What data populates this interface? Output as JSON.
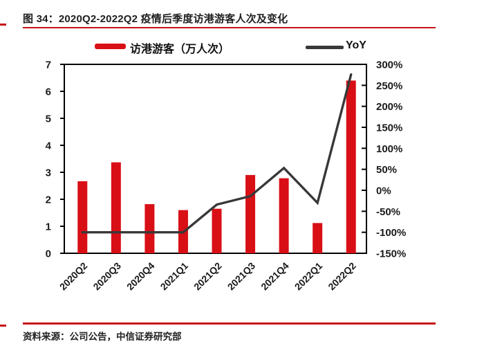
{
  "figure": {
    "title": "图 34：2020Q2-2022Q2 疫情后季度访港游客人次及变化",
    "source": "资料来源：公司公告，中信证券研究部"
  },
  "legend": {
    "bar_label": "访港游客（万人次）",
    "line_label": "YoY"
  },
  "colors": {
    "bar": "#d90f16",
    "line": "#383838",
    "rule": "#c41016",
    "axis": "#000000",
    "text": "#1a1a1a"
  },
  "chart_data": {
    "type": "bar",
    "title": "2020Q2-2022Q2 疫情后季度访港游客人次及变化",
    "categories": [
      "2020Q2",
      "2020Q3",
      "2020Q4",
      "2021Q1",
      "2021Q2",
      "2021Q3",
      "2021Q4",
      "2022Q1",
      "2022Q2"
    ],
    "series": [
      {
        "name": "访港游客（万人次）",
        "type": "bar",
        "axis": "left",
        "color": "#d90f16",
        "values": [
          2.67,
          3.37,
          1.82,
          1.6,
          1.65,
          2.9,
          2.78,
          1.12,
          6.4
        ]
      },
      {
        "name": "YoY",
        "type": "line",
        "axis": "right",
        "color": "#383838",
        "values": [
          -100,
          -100,
          -100,
          -100,
          -34,
          -14,
          53,
          -30,
          276
        ]
      }
    ],
    "left_axis": {
      "min": 0,
      "max": 7,
      "tick_labels": [
        "0",
        "1",
        "2",
        "3",
        "4",
        "5",
        "6",
        "7"
      ]
    },
    "right_axis": {
      "min": -150,
      "max": 300,
      "tick_labels": [
        "-150%",
        "-100%",
        "-50%",
        "0%",
        "50%",
        "100%",
        "150%",
        "200%",
        "250%",
        "300%"
      ]
    },
    "legend_position": "top",
    "grid": false
  }
}
